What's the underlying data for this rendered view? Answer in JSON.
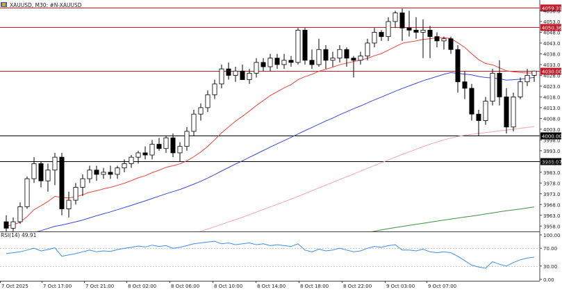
{
  "header": {
    "symbol_label": "XAUUSD, M30:  #N-XAUUSD"
  },
  "colors": {
    "bull_fill": "#ffffff",
    "bear_fill": "#000000",
    "candle_stroke": "#000000",
    "ma_fast": "#e8453c",
    "ma_mid": "#3b48d6",
    "ma_slow": "#f5a8a8",
    "ma_long": "#3f8f3f",
    "rsi_line": "#3d8de0",
    "price_line_red": "#c41a2a",
    "price_line_black": "#000000",
    "axis_text": "#222222",
    "grid": "#cccccc"
  },
  "chart_data": [
    {
      "type": "candlestick",
      "title": "XAUUSD, M30:  #N-XAUUSD",
      "ylim": [
        3955.5,
        4063
      ],
      "y_ticks": [
        4058.0,
        4053.0,
        4048.0,
        4043.0,
        4038.0,
        4033.0,
        4028.0,
        4023.0,
        4018.0,
        4013.0,
        4008.0,
        4003.0,
        3998.0,
        3993.0,
        3988.0,
        3983.0,
        3978.0,
        3973.0,
        3968.0,
        3963.0,
        3958.0
      ],
      "x_ticks": [
        "7 Oct 2025",
        "7 Oct 17:00",
        "7 Oct 21:00",
        "8 Oct 02:00",
        "8 Oct 06:00",
        "8 Oct 10:00",
        "8 Oct 14:00",
        "8 Oct 18:00",
        "8 Oct 22:00",
        "9 Oct 03:00",
        "9 Oct 07:00"
      ],
      "price_lines": [
        {
          "value": 4059.31,
          "label": "4059.31",
          "color": "red"
        },
        {
          "value": 4050.36,
          "label": "4050.36",
          "color": "red"
        },
        {
          "value": 4030.0,
          "label": "4030.00",
          "color": "red"
        },
        {
          "value": 4000.0,
          "label": "4000.00",
          "color": "black"
        },
        {
          "value": 3988.07,
          "label": "3988.07",
          "color": "black"
        }
      ],
      "candles": [
        {
          "o": 3960,
          "h": 3963,
          "l": 3955.5,
          "c": 3957
        },
        {
          "o": 3957,
          "h": 3962,
          "l": 3955.5,
          "c": 3960
        },
        {
          "o": 3960,
          "h": 3969,
          "l": 3959,
          "c": 3967
        },
        {
          "o": 3967,
          "h": 3981,
          "l": 3966,
          "c": 3980
        },
        {
          "o": 3980,
          "h": 3990,
          "l": 3978,
          "c": 3987
        },
        {
          "o": 3987,
          "h": 3988,
          "l": 3976,
          "c": 3979
        },
        {
          "o": 3979,
          "h": 3987,
          "l": 3974,
          "c": 3984
        },
        {
          "o": 3984,
          "h": 3992,
          "l": 3977,
          "c": 3990
        },
        {
          "o": 3990,
          "h": 3992,
          "l": 3963,
          "c": 3966
        },
        {
          "o": 3966,
          "h": 3974,
          "l": 3962,
          "c": 3970
        },
        {
          "o": 3970,
          "h": 3978,
          "l": 3968,
          "c": 3976
        },
        {
          "o": 3976,
          "h": 3982,
          "l": 3972,
          "c": 3980
        },
        {
          "o": 3980,
          "h": 3986,
          "l": 3978,
          "c": 3984
        },
        {
          "o": 3984,
          "h": 3986,
          "l": 3979,
          "c": 3982
        },
        {
          "o": 3982,
          "h": 3985,
          "l": 3980,
          "c": 3983
        },
        {
          "o": 3983,
          "h": 3986,
          "l": 3980,
          "c": 3982
        },
        {
          "o": 3982,
          "h": 3986,
          "l": 3980,
          "c": 3985
        },
        {
          "o": 3985,
          "h": 3989,
          "l": 3983,
          "c": 3987
        },
        {
          "o": 3987,
          "h": 3991,
          "l": 3985,
          "c": 3990
        },
        {
          "o": 3990,
          "h": 3993,
          "l": 3987,
          "c": 3992
        },
        {
          "o": 3992,
          "h": 3995,
          "l": 3989,
          "c": 3991
        },
        {
          "o": 3991,
          "h": 3998,
          "l": 3989,
          "c": 3996
        },
        {
          "o": 3996,
          "h": 3999,
          "l": 3993,
          "c": 3994
        },
        {
          "o": 3994,
          "h": 4000,
          "l": 3992,
          "c": 3999
        },
        {
          "o": 3999,
          "h": 4001,
          "l": 3990,
          "c": 3992
        },
        {
          "o": 3992,
          "h": 3997,
          "l": 3988,
          "c": 3995
        },
        {
          "o": 3995,
          "h": 4004,
          "l": 3993,
          "c": 4002
        },
        {
          "o": 4002,
          "h": 4012,
          "l": 4000,
          "c": 4010
        },
        {
          "o": 4010,
          "h": 4015,
          "l": 4007,
          "c": 4013
        },
        {
          "o": 4013,
          "h": 4021,
          "l": 4011,
          "c": 4019
        },
        {
          "o": 4019,
          "h": 4026,
          "l": 4017,
          "c": 4024
        },
        {
          "o": 4024,
          "h": 4033,
          "l": 4022,
          "c": 4031
        },
        {
          "o": 4031,
          "h": 4034,
          "l": 4026,
          "c": 4028
        },
        {
          "o": 4028,
          "h": 4032,
          "l": 4025,
          "c": 4030
        },
        {
          "o": 4030,
          "h": 4033,
          "l": 4027,
          "c": 4026
        },
        {
          "o": 4026,
          "h": 4031,
          "l": 4024,
          "c": 4029
        },
        {
          "o": 4029,
          "h": 4036,
          "l": 4027,
          "c": 4034
        },
        {
          "o": 4034,
          "h": 4036,
          "l": 4030,
          "c": 4032
        },
        {
          "o": 4032,
          "h": 4038,
          "l": 4030,
          "c": 4036
        },
        {
          "o": 4036,
          "h": 4038,
          "l": 4031,
          "c": 4033
        },
        {
          "o": 4033,
          "h": 4038,
          "l": 4031,
          "c": 4035
        },
        {
          "o": 4035,
          "h": 4037,
          "l": 4032,
          "c": 4034
        },
        {
          "o": 4034,
          "h": 4050,
          "l": 4033,
          "c": 4049
        },
        {
          "o": 4049,
          "h": 4050,
          "l": 4033,
          "c": 4035
        },
        {
          "o": 4035,
          "h": 4040,
          "l": 4031,
          "c": 4033
        },
        {
          "o": 4033,
          "h": 4045,
          "l": 4032,
          "c": 4040
        },
        {
          "o": 4040,
          "h": 4042,
          "l": 4031,
          "c": 4035
        },
        {
          "o": 4035,
          "h": 4039,
          "l": 4032,
          "c": 4036
        },
        {
          "o": 4036,
          "h": 4042,
          "l": 4034,
          "c": 4040
        },
        {
          "o": 4040,
          "h": 4041,
          "l": 4032,
          "c": 4036
        },
        {
          "o": 4036,
          "h": 4037,
          "l": 4027,
          "c": 4035
        },
        {
          "o": 4035,
          "h": 4039,
          "l": 4033,
          "c": 4037
        },
        {
          "o": 4037,
          "h": 4045,
          "l": 4035,
          "c": 4043
        },
        {
          "o": 4043,
          "h": 4050,
          "l": 4041,
          "c": 4048
        },
        {
          "o": 4048,
          "h": 4049,
          "l": 4044,
          "c": 4046
        },
        {
          "o": 4046,
          "h": 4055,
          "l": 4044,
          "c": 4053
        },
        {
          "o": 4053,
          "h": 4058,
          "l": 4050,
          "c": 4057
        },
        {
          "o": 4057,
          "h": 4059,
          "l": 4044,
          "c": 4050
        },
        {
          "o": 4050,
          "h": 4058,
          "l": 4046,
          "c": 4049
        },
        {
          "o": 4049,
          "h": 4055,
          "l": 4045,
          "c": 4048
        },
        {
          "o": 4048,
          "h": 4054,
          "l": 4036,
          "c": 4049
        },
        {
          "o": 4049,
          "h": 4051,
          "l": 4036,
          "c": 4046
        },
        {
          "o": 4046,
          "h": 4048,
          "l": 4041,
          "c": 4044
        },
        {
          "o": 4044,
          "h": 4046,
          "l": 4040,
          "c": 4045
        },
        {
          "o": 4045,
          "h": 4046,
          "l": 4038,
          "c": 4040
        },
        {
          "o": 4040,
          "h": 4042,
          "l": 4020,
          "c": 4025
        },
        {
          "o": 4025,
          "h": 4030,
          "l": 4017,
          "c": 4022
        },
        {
          "o": 4022,
          "h": 4024,
          "l": 4007,
          "c": 4010
        },
        {
          "o": 4010,
          "h": 4012,
          "l": 4000,
          "c": 4007
        },
        {
          "o": 4007,
          "h": 4018,
          "l": 4005,
          "c": 4016
        },
        {
          "o": 4016,
          "h": 4031,
          "l": 4014,
          "c": 4029
        },
        {
          "o": 4029,
          "h": 4035,
          "l": 4014,
          "c": 4018
        },
        {
          "o": 4018,
          "h": 4022,
          "l": 4001,
          "c": 4004
        },
        {
          "o": 4004,
          "h": 4020,
          "l": 4002,
          "c": 4018
        },
        {
          "o": 4018,
          "h": 4027,
          "l": 4017,
          "c": 4025
        },
        {
          "o": 4025,
          "h": 4031,
          "l": 4023,
          "c": 4028
        },
        {
          "o": 4028,
          "h": 4030,
          "l": 4025,
          "c": 4030
        }
      ],
      "ma_fast": [
        3958,
        3958.6,
        3959.8,
        3962.4,
        3965.6,
        3967.4,
        3969.4,
        3971.8,
        3971.3,
        3971.1,
        3971.6,
        3972.5,
        3973.7,
        3974.4,
        3975.3,
        3976,
        3976.9,
        3977.9,
        3979.1,
        3980.4,
        3981.4,
        3982.8,
        3983.9,
        3985.3,
        3986.0,
        3986.9,
        3988.3,
        3990.2,
        3992.4,
        3995,
        3998,
        4001.3,
        4004,
        4006.7,
        4009,
        4011.4,
        4014,
        4016.3,
        4018.6,
        4020.4,
        4022.2,
        4023.7,
        4026,
        4027.4,
        4028.5,
        4029.9,
        4030.8,
        4031.8,
        4032.9,
        4033.7,
        4034.4,
        4035,
        4035.9,
        4037.1,
        4038.1,
        4039.7,
        4041.3,
        4042.9,
        4043.5,
        4044,
        4044.7,
        4045,
        4045.5,
        4045.5,
        4045.1,
        4043.1,
        4041,
        4038,
        4035.3,
        4033.5,
        4032.9,
        4031.5,
        4030.1,
        4029.7,
        4029.3,
        4029.1,
        4029.1
      ],
      "ma_mid": [
        3952,
        3952.4,
        3953,
        3953.9,
        3955,
        3955.9,
        3956.9,
        3957.9,
        3958.5,
        3959.2,
        3960,
        3960.8,
        3961.8,
        3962.8,
        3963.7,
        3964.6,
        3965.6,
        3966.6,
        3967.6,
        3968.7,
        3969.7,
        3970.8,
        3971.9,
        3973,
        3974,
        3975,
        3976.2,
        3977.5,
        3978.8,
        3980.3,
        3981.9,
        3983.6,
        3985.2,
        3986.8,
        3988.3,
        3989.9,
        3991.5,
        3993.1,
        3994.7,
        3996.2,
        3997.7,
        3999.2,
        4000.8,
        4002.3,
        4003.8,
        4005.3,
        4006.8,
        4008.2,
        4009.7,
        4011.1,
        4012.5,
        4013.8,
        4015.2,
        4016.6,
        4017.9,
        4019.3,
        4020.6,
        4021.9,
        4023.1,
        4024.3,
        4025.5,
        4026.5,
        4027.5,
        4028.5,
        4029.3,
        4028.9,
        4028.6,
        4028.2,
        4027.5,
        4027,
        4026.8,
        4026.4,
        4025.8,
        4026,
        4026.2,
        4026.6,
        4027.1
      ],
      "ma_slow": [
        3936,
        3936.3,
        3936.6,
        3937,
        3937.5,
        3938,
        3938.5,
        3939,
        3939.6,
        3940.2,
        3940.8,
        3941.4,
        3942.1,
        3942.8,
        3943.5,
        3944.2,
        3945,
        3945.8,
        3946.6,
        3947.4,
        3948.2,
        3949.1,
        3950,
        3950.9,
        3951.8,
        3952.7,
        3953.6,
        3954.6,
        3955.6,
        3956.6,
        3957.7,
        3958.8,
        3959.9,
        3961,
        3962.1,
        3963.3,
        3964.5,
        3965.7,
        3966.9,
        3968.1,
        3969.3,
        3970.5,
        3971.8,
        3973.1,
        3974.4,
        3975.7,
        3977,
        3978.3,
        3979.6,
        3980.9,
        3982.2,
        3983.5,
        3984.8,
        3986.1,
        3987.4,
        3988.7,
        3990,
        3991.3,
        3992.5,
        3993.7,
        3994.9,
        3996,
        3997,
        3998,
        3998.9,
        3999.6,
        4000.2,
        4000.6,
        4001,
        4001.4,
        4001.8,
        4002.2,
        4002.6,
        4003,
        4003.4,
        4003.8,
        4004.2
      ],
      "ma_long": [
        3953.2,
        3953.8,
        3954.4,
        3955,
        3955.6,
        3956.2,
        3956.8,
        3957.3,
        3957.8,
        3958.3,
        3958.8,
        3959.3,
        3959.8,
        3960.3,
        3960.8,
        3961.2,
        3961.7,
        3962.2,
        3962.6,
        3963.1,
        3963.6,
        3964.1,
        3964.6,
        3965.1,
        3965.5,
        3965.9,
        3966.4,
        3966.9
      ],
      "ma_long_start_index": 49
    },
    {
      "type": "line",
      "title": "RSI(14) 49.91",
      "ylim": [
        0,
        100
      ],
      "y_ticks": [
        100.0,
        70.0,
        30.0,
        0.0
      ],
      "values": [
        58,
        60,
        62,
        66,
        70,
        64,
        67,
        71,
        52,
        55,
        58,
        62,
        66,
        62,
        64,
        63,
        67,
        70,
        72,
        75,
        73,
        77,
        74,
        76,
        70,
        72,
        76,
        80,
        82,
        84,
        86,
        80,
        82,
        78,
        80,
        82,
        78,
        80,
        76,
        78,
        76,
        74,
        80,
        66,
        62,
        68,
        64,
        66,
        70,
        66,
        62,
        64,
        70,
        74,
        72,
        76,
        78,
        66,
        66,
        64,
        68,
        62,
        60,
        62,
        60,
        52,
        42,
        32,
        28,
        25,
        40,
        34,
        30,
        38,
        44,
        48,
        50
      ]
    }
  ]
}
